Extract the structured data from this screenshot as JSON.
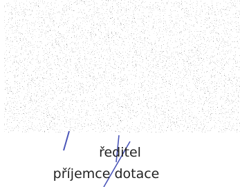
{
  "signature_block": {
    "role": "ředitel",
    "subtitle": "příjemce dotace"
  }
}
